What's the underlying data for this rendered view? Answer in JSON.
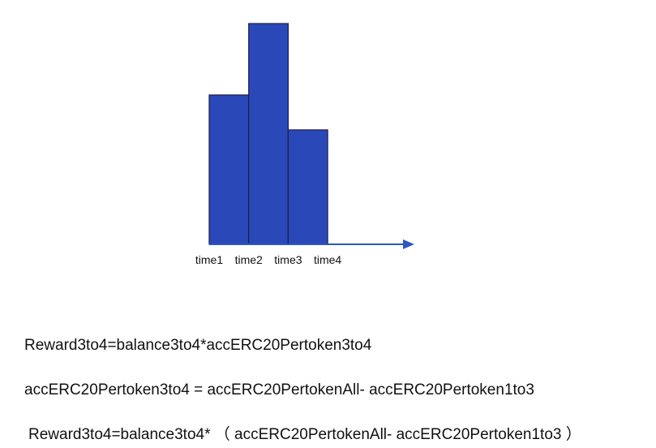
{
  "chart_data": {
    "type": "bar",
    "boundaries": [
      "time1",
      "time2",
      "time3",
      "time4"
    ],
    "values": [
      184,
      272,
      141
    ],
    "color": "#2a48b8",
    "ylim": [
      0,
      272
    ]
  },
  "formulas": [
    "Reward3to4=balance3to4*accERC20Pertoken3to4",
    "accERC20Pertoken3to4 = accERC20PertokenAll- accERC20Pertoken1to3",
    "Reward3to4=balance3to4* （ accERC20PertokenAll- accERC20Pertoken1to3 ）"
  ]
}
